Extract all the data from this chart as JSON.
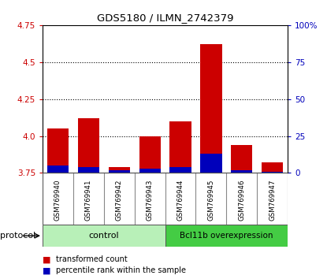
{
  "title": "GDS5180 / ILMN_2742379",
  "samples": [
    "GSM769940",
    "GSM769941",
    "GSM769942",
    "GSM769943",
    "GSM769944",
    "GSM769945",
    "GSM769946",
    "GSM769947"
  ],
  "red_values": [
    4.05,
    4.12,
    3.79,
    4.0,
    4.1,
    4.62,
    3.94,
    3.82
  ],
  "blue_percentile": [
    5,
    4,
    2,
    3,
    4,
    13,
    2,
    1
  ],
  "baseline": 3.75,
  "ylim_left": [
    3.75,
    4.75
  ],
  "ylim_right": [
    0,
    100
  ],
  "yticks_left": [
    3.75,
    4.0,
    4.25,
    4.5,
    4.75
  ],
  "yticks_right": [
    0,
    25,
    50,
    75,
    100
  ],
  "ytick_labels_right": [
    "0",
    "25",
    "50",
    "75",
    "100%"
  ],
  "dotted_gridlines": [
    4.0,
    4.25,
    4.5
  ],
  "bar_width": 0.7,
  "control_label": "control",
  "overexpr_label": "Bcl11b overexpression",
  "protocol_label": "protocol",
  "legend_red": "transformed count",
  "legend_blue": "percentile rank within the sample",
  "plot_bg": "#ffffff",
  "label_bg": "#d8d8d8",
  "control_bg": "#b8f0b8",
  "overexpr_bg": "#44cc44",
  "red_color": "#cc0000",
  "blue_color": "#0000bb",
  "left_tick_color": "#cc0000",
  "right_tick_color": "#0000bb",
  "n_control": 4,
  "n_overexpr": 4
}
